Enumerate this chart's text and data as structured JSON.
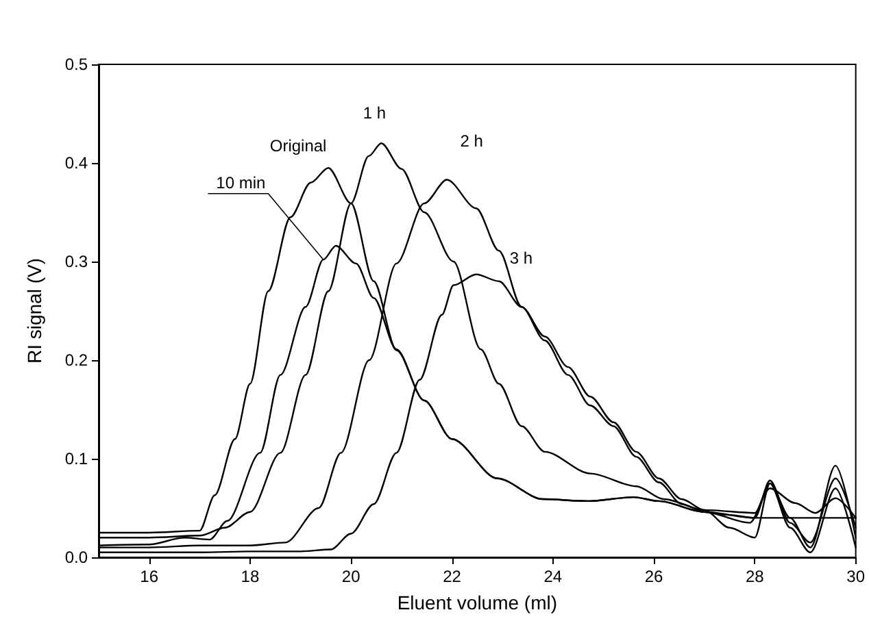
{
  "chart_data": {
    "type": "line",
    "xlabel": "Eluent volume (ml)",
    "ylabel": "RI signal (V)",
    "xlim": [
      15,
      30
    ],
    "xticks": [
      16,
      18,
      20,
      22,
      24,
      26,
      28,
      30
    ],
    "ylim": [
      0,
      0.5
    ],
    "yticks": [
      {
        "value": 0,
        "label": "0.0"
      },
      {
        "value": 0.1,
        "label": "0.1"
      },
      {
        "value": 0.2,
        "label": "0.2"
      },
      {
        "value": 0.3,
        "label": "0.3"
      },
      {
        "value": 0.4,
        "label": "0.4"
      },
      {
        "value": 0.5,
        "label": "0.5"
      }
    ],
    "marker": "none",
    "line_style": "solid",
    "annotations": [
      {
        "text": "Original",
        "x": 19.55,
        "y": 0.395
      },
      {
        "text": "10 min",
        "x": 19.5,
        "y": 0.305
      },
      {
        "text": "1 h",
        "x": 20.6,
        "y": 0.42
      },
      {
        "text": "2 h",
        "x": 21.9,
        "y": 0.383
      },
      {
        "text": "3 h",
        "x": 22.5,
        "y": 0.287
      }
    ],
    "series": [
      {
        "color": "#000000",
        "x": [
          15,
          16,
          17,
          17.3,
          17.7,
          18,
          18.36,
          18.8,
          19.2,
          19.55,
          20,
          20.45,
          20.9,
          21.45,
          22,
          22.9,
          23.8,
          24.7,
          25.6,
          26.1,
          27,
          27.5,
          28,
          28.5,
          29,
          29.5,
          30
        ],
        "values": [
          0.025,
          0.025,
          0.027,
          0.063,
          0.12,
          0.176,
          0.27,
          0.345,
          0.38,
          0.395,
          0.359,
          0.28,
          0.21,
          0.159,
          0.12,
          0.08,
          0.059,
          0.057,
          0.061,
          0.057,
          0.046,
          0.043,
          0.04,
          0.04,
          0.04,
          0.04,
          0.04
        ]
      },
      {
        "color": "#000000",
        "x": [
          15,
          16,
          16.7,
          17.2,
          17.55,
          18.2,
          18.6,
          19.1,
          19.45,
          19.7,
          20.1,
          20.45,
          20.9,
          21.45,
          22,
          22.9,
          23.8,
          24.7,
          25.6,
          26.1,
          27,
          27.9,
          28.3,
          28.8,
          29.2,
          29.6,
          30
        ],
        "values": [
          0.012,
          0.013,
          0.02,
          0.018,
          0.037,
          0.106,
          0.185,
          0.254,
          0.302,
          0.316,
          0.298,
          0.263,
          0.211,
          0.159,
          0.12,
          0.08,
          0.059,
          0.057,
          0.061,
          0.057,
          0.046,
          0.035,
          0.07,
          0.055,
          0.045,
          0.06,
          0.04
        ]
      },
      {
        "color": "#000000",
        "x": [
          15,
          16,
          17,
          17.5,
          18,
          18.6,
          19.1,
          19.55,
          20,
          20.35,
          20.6,
          21,
          21.45,
          22.03,
          22.57,
          22.93,
          23.38,
          23.84,
          24.74,
          25.65,
          26.2,
          27,
          28,
          28.3,
          28.7,
          29.1,
          29.6,
          30
        ],
        "values": [
          0.02,
          0.02,
          0.022,
          0.03,
          0.046,
          0.106,
          0.185,
          0.27,
          0.359,
          0.407,
          0.42,
          0.394,
          0.35,
          0.3,
          0.211,
          0.176,
          0.133,
          0.107,
          0.085,
          0.072,
          0.059,
          0.048,
          0.045,
          0.075,
          0.04,
          0.01,
          0.093,
          0.02
        ]
      },
      {
        "color": "#000000",
        "x": [
          15,
          16,
          17,
          18,
          18.7,
          19.36,
          19.8,
          20.36,
          20.9,
          21.45,
          21.9,
          22.48,
          22.93,
          23.38,
          23.84,
          24.3,
          24.74,
          25.2,
          25.65,
          26.1,
          26.55,
          27,
          28,
          28.3,
          28.7,
          29.1,
          29.6,
          30
        ],
        "values": [
          0.01,
          0.01,
          0.012,
          0.012,
          0.015,
          0.05,
          0.106,
          0.2,
          0.298,
          0.359,
          0.383,
          0.354,
          0.311,
          0.254,
          0.22,
          0.185,
          0.154,
          0.133,
          0.102,
          0.076,
          0.054,
          0.046,
          0.04,
          0.078,
          0.035,
          0.015,
          0.08,
          0.03
        ]
      },
      {
        "color": "#000000",
        "x": [
          15,
          16,
          17,
          18,
          19,
          19.6,
          20,
          20.45,
          20.9,
          21.36,
          21.8,
          22.03,
          22.48,
          22.93,
          23.38,
          23.84,
          24.3,
          24.74,
          25.2,
          25.65,
          26.1,
          26.55,
          27,
          27.5,
          28,
          28.3,
          28.7,
          29.1,
          29.6,
          30
        ],
        "values": [
          0.005,
          0.005,
          0.005,
          0.006,
          0.006,
          0.008,
          0.024,
          0.054,
          0.106,
          0.18,
          0.246,
          0.276,
          0.287,
          0.28,
          0.254,
          0.224,
          0.193,
          0.163,
          0.137,
          0.107,
          0.08,
          0.059,
          0.048,
          0.03,
          0.02,
          0.075,
          0.03,
          0.005,
          0.07,
          0.01
        ]
      }
    ]
  }
}
